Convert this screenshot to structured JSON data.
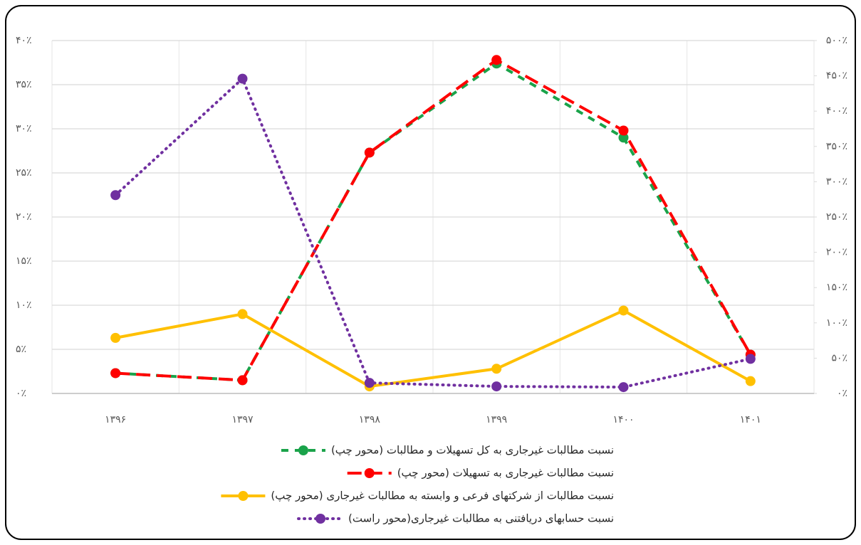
{
  "chart_data": {
    "type": "line",
    "categories": [
      "۱۳۹۶",
      "۱۳۹۷",
      "۱۳۹۸",
      "۱۳۹۹",
      "۱۴۰۰",
      "۱۴۰۱"
    ],
    "series": [
      {
        "name": "نسبت مطالبات غیرجاری به کل تسهیلات و مطالبات (محور چپ)",
        "color": "#1aa34a",
        "values": [
          2.3,
          1.5,
          27.3,
          37.4,
          29.0,
          4.4
        ]
      },
      {
        "name": "نسبت مطالبات غیرجاری به تسهیلات (محور چپ)",
        "color": "#ff0000",
        "values": [
          2.3,
          1.5,
          27.3,
          37.8,
          29.8,
          4.4
        ]
      },
      {
        "name": "نسبت مطالبات از شرکتهای فرعی و وابسته به مطالبات غیرجاری (محور چپ)",
        "color": "#ffc000",
        "values": [
          6.3,
          9.0,
          0.8,
          2.8,
          9.4,
          1.4
        ]
      },
      {
        "name": "نسبت حسابهای دریافتنی به مطالبات غیرجاری(محور راست)",
        "color": "#7030a0",
        "axis": "y2",
        "values": [
          281,
          446,
          15,
          10,
          9,
          49
        ]
      }
    ],
    "ylim": [
      0,
      40
    ],
    "yticks": [
      {
        "value": 0,
        "label": "۰٪"
      },
      {
        "value": 5,
        "label": "۵٪"
      },
      {
        "value": 10,
        "label": "۱۰٪"
      },
      {
        "value": 15,
        "label": "۱۵٪"
      },
      {
        "value": 20,
        "label": "۲۰٪"
      },
      {
        "value": 25,
        "label": "۲۵٪"
      },
      {
        "value": 30,
        "label": "۳۰٪"
      },
      {
        "value": 35,
        "label": "۳۵٪"
      },
      {
        "value": 40,
        "label": "۴۰٪"
      }
    ],
    "y2lim": [
      0,
      500
    ],
    "y2ticks": [
      {
        "value": 0,
        "label": "۰٪"
      },
      {
        "value": 50,
        "label": "۵۰٪"
      },
      {
        "value": 100,
        "label": "۱۰۰٪"
      },
      {
        "value": 150,
        "label": "۱۵۰٪"
      },
      {
        "value": 200,
        "label": "۲۰۰٪"
      },
      {
        "value": 250,
        "label": "۲۵۰٪"
      },
      {
        "value": 300,
        "label": "۳۰۰٪"
      },
      {
        "value": 350,
        "label": "۳۵۰٪"
      },
      {
        "value": 400,
        "label": "۴۰۰٪"
      },
      {
        "value": 450,
        "label": "۴۵۰٪"
      },
      {
        "value": 500,
        "label": "۵۰۰٪"
      }
    ],
    "grid": true,
    "legend": "bottom"
  }
}
